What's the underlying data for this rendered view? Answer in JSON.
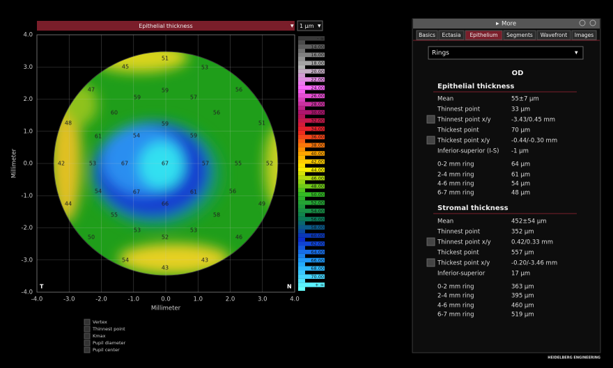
{
  "map": {
    "title": "Epithelial thickness",
    "step": "1 µm",
    "x_label": "Millimeter",
    "y_label": "Millimeter",
    "corner_left": "T",
    "corner_right": "N",
    "x_ticks": [
      "-4.0",
      "-3.0",
      "-2.0",
      "-1.0",
      "0.0",
      "1.0",
      "2.0",
      "3.0",
      "4.0"
    ],
    "y_ticks": [
      "4.0",
      "3.0",
      "2.0",
      "1.0",
      "0.0",
      "-1.0",
      "-2.0",
      "-3.0",
      "-4.0"
    ],
    "values": [
      "51",
      "53",
      "45",
      "47",
      "59",
      "59",
      "57",
      "56",
      "60",
      "56",
      "48",
      "61",
      "54",
      "59",
      "59",
      "51",
      "42",
      "53",
      "67",
      "67",
      "57",
      "55",
      "52",
      "54",
      "67",
      "61",
      "56",
      "44",
      "66",
      "49",
      "55",
      "58",
      "53",
      "53",
      "50",
      "46",
      "52",
      "54",
      "43",
      "43"
    ],
    "scale": [
      "- ∞",
      "14.00",
      "16.00",
      "18.00",
      "20.00",
      "22.00",
      "24.00",
      "26.00",
      "28.00",
      "30.00",
      "32.00",
      "34.00",
      "36.00",
      "38.00",
      "40.00",
      "42.00",
      "44.00",
      "46.00",
      "48.00",
      "50.00",
      "52.00",
      "54.00",
      "56.00",
      "58.00",
      "60.00",
      "62.00",
      "64.00",
      "66.00",
      "68.00",
      "70.00",
      "+ ∞"
    ],
    "legend": [
      "Vertex",
      "Thinnest point",
      "Kmax",
      "Pupil diameter",
      "Pupil center"
    ]
  },
  "panel": {
    "more": "More",
    "tabs": [
      "Basics",
      "Ectasia",
      "Epithelium",
      "Segments",
      "Wavefront",
      "Images"
    ],
    "dropdown": "Rings",
    "eye": "OD",
    "sections": [
      {
        "title": "Epithelial thickness",
        "rows": [
          {
            "label": "Mean",
            "value": "55±7 µm"
          },
          {
            "label": "Thinnest point",
            "value": "33 µm"
          },
          {
            "label": "Thinnest point x/y",
            "value": "-3.43/0.45 mm"
          },
          {
            "label": "Thickest point",
            "value": "70 µm"
          },
          {
            "label": "Thickest point x/y",
            "value": "-0.44/-0.30 mm"
          },
          {
            "label": "Inferior-superior (I-S)",
            "value": "-1 µm"
          },
          {
            "label": "0-2 mm ring",
            "value": "64 µm"
          },
          {
            "label": "2-4 mm ring",
            "value": "61 µm"
          },
          {
            "label": "4-6 mm ring",
            "value": "54 µm"
          },
          {
            "label": "6-7 mm ring",
            "value": "48 µm"
          }
        ]
      },
      {
        "title": "Stromal thickness",
        "rows": [
          {
            "label": "Mean",
            "value": "452±54 µm"
          },
          {
            "label": "Thinnest point",
            "value": "352 µm"
          },
          {
            "label": "Thinnest point x/y",
            "value": "0.42/0.33 mm"
          },
          {
            "label": "Thickest point",
            "value": "557 µm"
          },
          {
            "label": "Thickest point x/y",
            "value": "-0.20/-3.46 mm"
          },
          {
            "label": "Inferior-superior",
            "value": "17 µm"
          },
          {
            "label": "0-2 mm ring",
            "value": "363 µm"
          },
          {
            "label": "2-4 mm ring",
            "value": "395 µm"
          },
          {
            "label": "4-6 mm ring",
            "value": "460 µm"
          },
          {
            "label": "6-7 mm ring",
            "value": "519 µm"
          }
        ]
      }
    ]
  },
  "brand": "HEIDELBERG ENGINEERING"
}
